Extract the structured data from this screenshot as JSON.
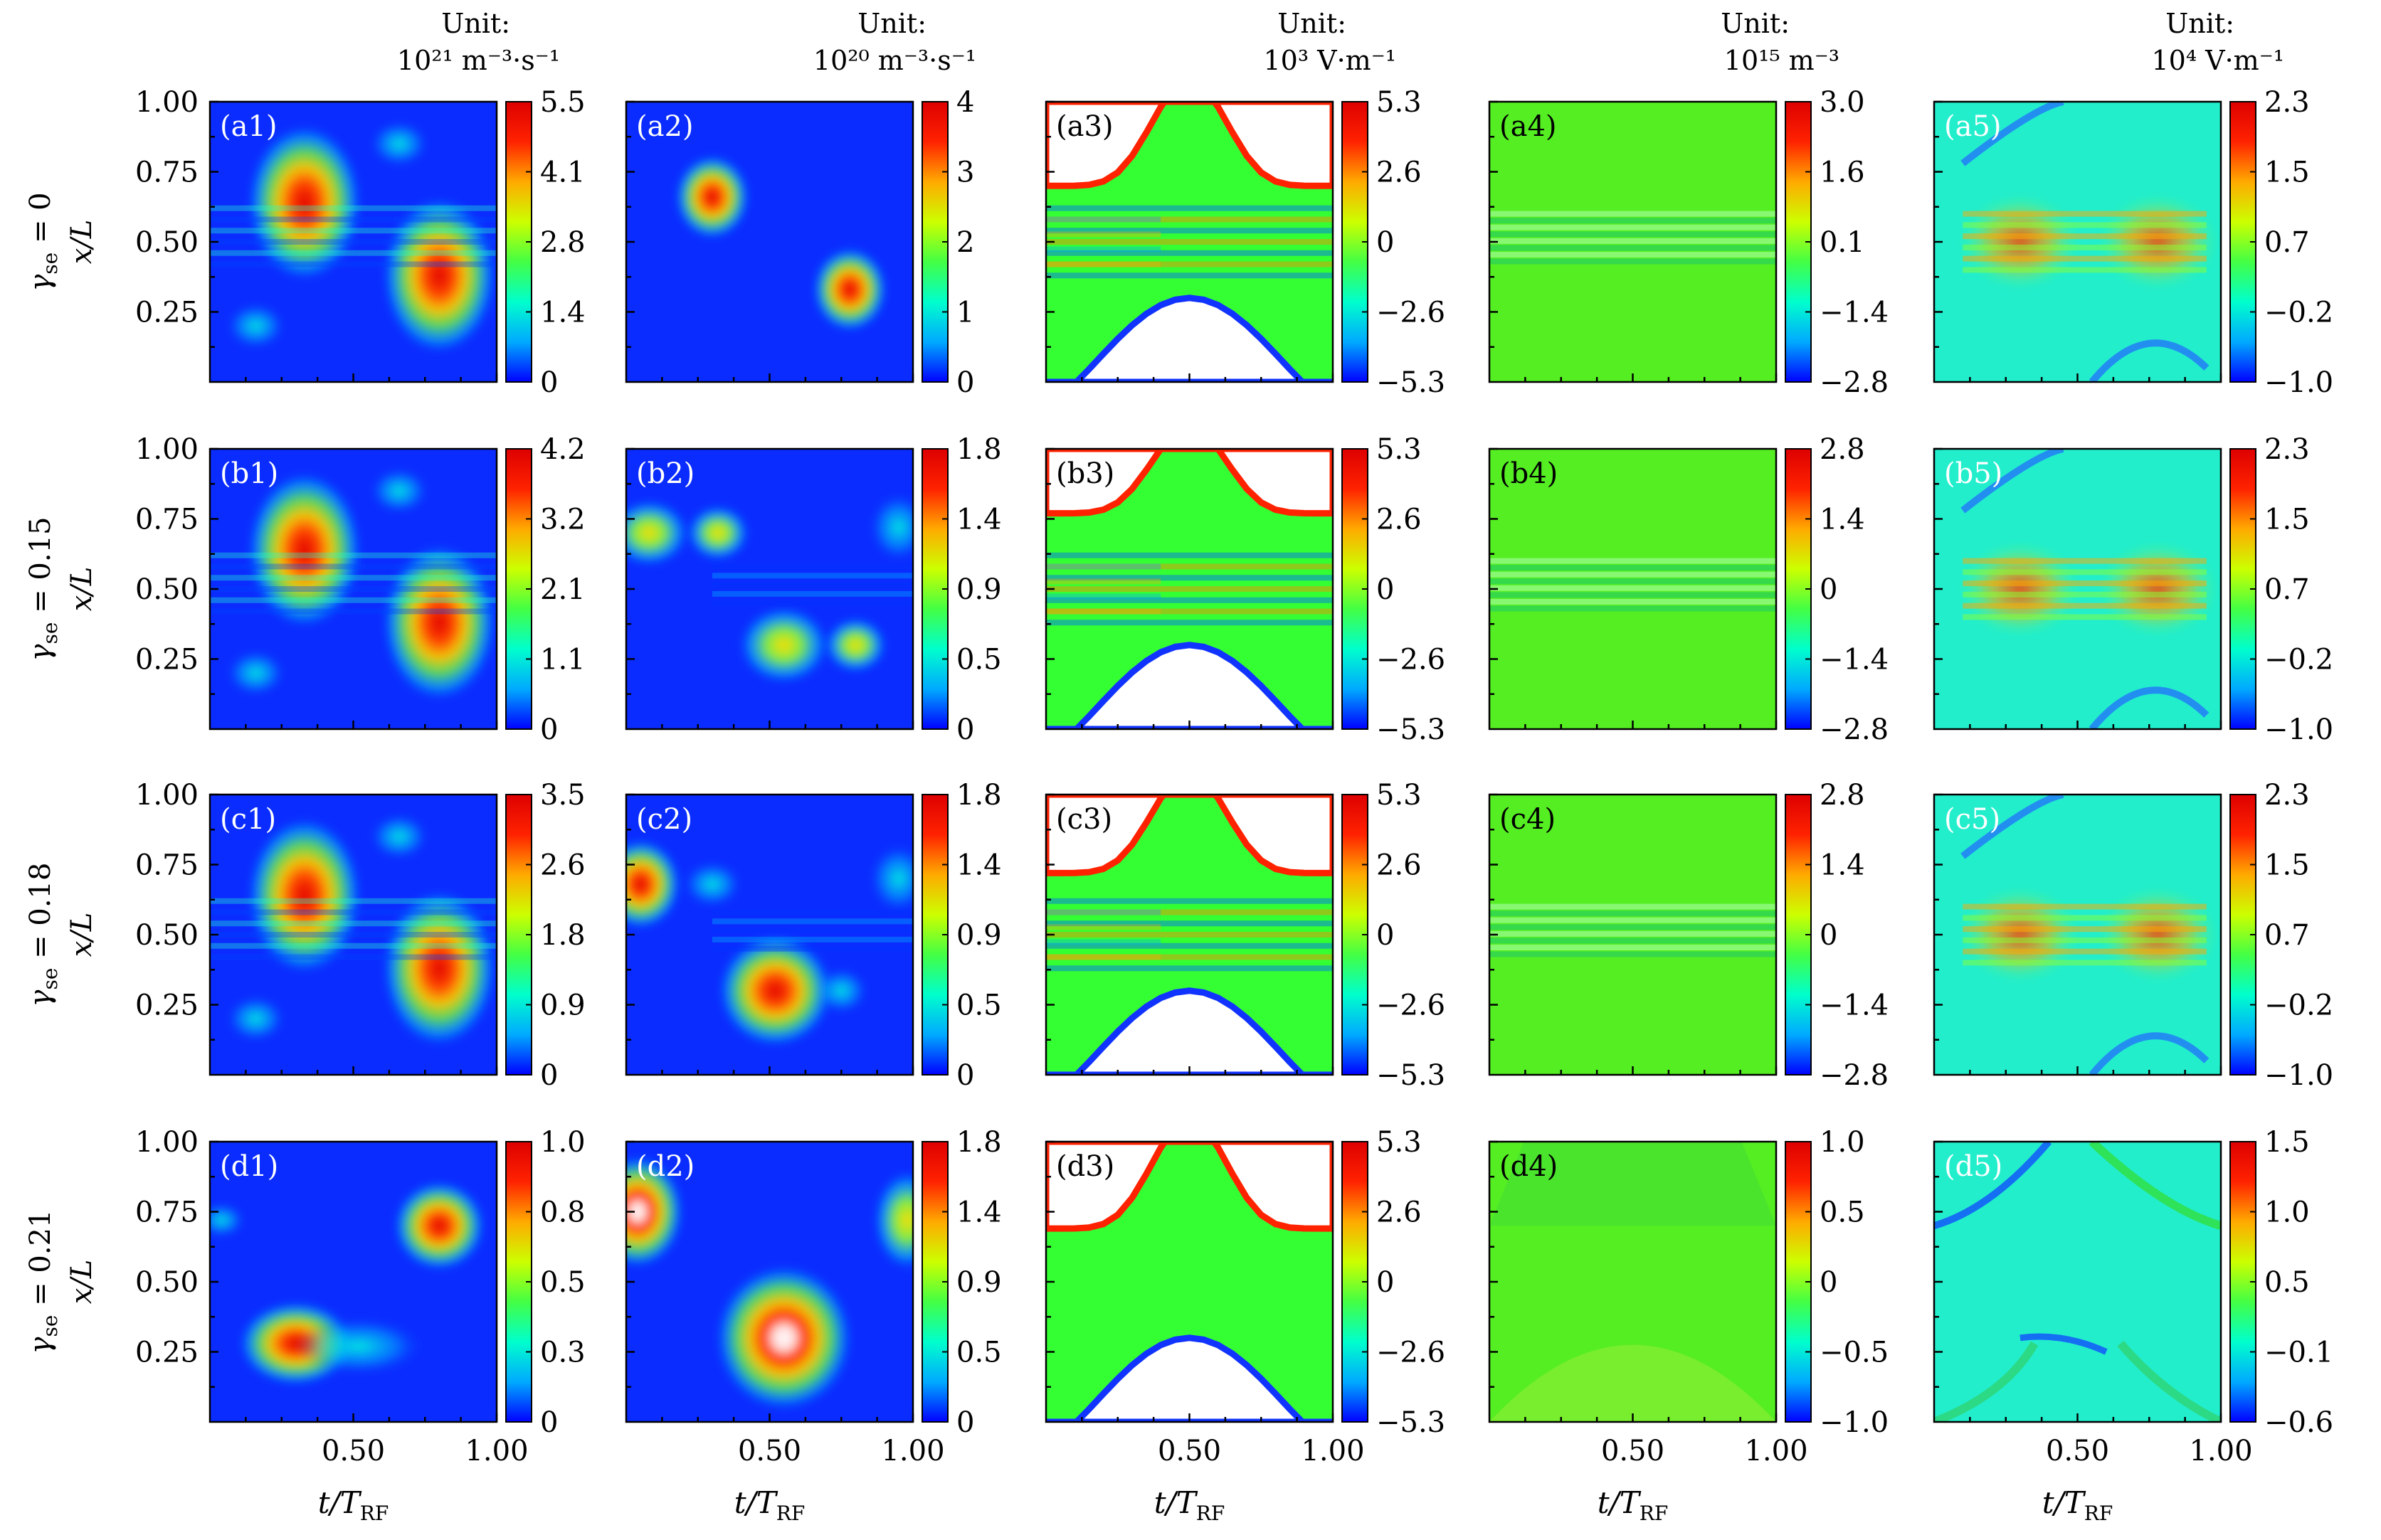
{
  "figure": {
    "x_axis_label": "t/T",
    "x_axis_label_sub": "RF",
    "y_axis_label": "x/L",
    "x_ticks": [
      "0.50",
      "1.00"
    ],
    "y_ticks": [
      "1.00",
      "0.75",
      "0.50",
      "0.25"
    ],
    "row_label_symbol": "γ",
    "row_label_sub": "se",
    "row_gammas": [
      "0",
      "0.15",
      "0.18",
      "0.21"
    ],
    "colormap": [
      "#0000ff",
      "#00aaff",
      "#00ffcc",
      "#44ff44",
      "#ccff00",
      "#ffaa00",
      "#ff2200",
      "#dd0000"
    ]
  },
  "columns": [
    {
      "unit_title": "Unit:",
      "unit_text": "10²¹ m⁻³·s⁻¹"
    },
    {
      "unit_title": "Unit:",
      "unit_text": "10²⁰ m⁻³·s⁻¹"
    },
    {
      "unit_title": "Unit:",
      "unit_text": "10³ V·m⁻¹"
    },
    {
      "unit_title": "Unit:",
      "unit_text": "10¹⁵ m⁻³"
    },
    {
      "unit_title": "Unit:",
      "unit_text": "10⁴ V·m⁻¹"
    }
  ],
  "chart_data": {
    "type": "heatmap",
    "x_range": [
      0,
      1
    ],
    "y_range": [
      0,
      1
    ],
    "panels": [
      [
        {
          "label": "(a1)",
          "colorbar_ticks": [
            "5.5",
            "4.1",
            "2.8",
            "1.4",
            "0"
          ]
        },
        {
          "label": "(a2)",
          "colorbar_ticks": [
            "4",
            "3",
            "2",
            "1",
            "0"
          ]
        },
        {
          "label": "(a3)",
          "colorbar_ticks": [
            "5.3",
            "2.6",
            "0",
            "−2.6",
            "−5.3"
          ]
        },
        {
          "label": "(a4)",
          "colorbar_ticks": [
            "3.0",
            "1.6",
            "0.1",
            "−1.4",
            "−2.8"
          ]
        },
        {
          "label": "(a5)",
          "colorbar_ticks": [
            "2.3",
            "1.5",
            "0.7",
            "−0.2",
            "−1.0"
          ]
        }
      ],
      [
        {
          "label": "(b1)",
          "colorbar_ticks": [
            "4.2",
            "3.2",
            "2.1",
            "1.1",
            "0"
          ]
        },
        {
          "label": "(b2)",
          "colorbar_ticks": [
            "1.8",
            "1.4",
            "0.9",
            "0.5",
            "0"
          ]
        },
        {
          "label": "(b3)",
          "colorbar_ticks": [
            "5.3",
            "2.6",
            "0",
            "−2.6",
            "−5.3"
          ]
        },
        {
          "label": "(b4)",
          "colorbar_ticks": [
            "2.8",
            "1.4",
            "0",
            "−1.4",
            "−2.8"
          ]
        },
        {
          "label": "(b5)",
          "colorbar_ticks": [
            "2.3",
            "1.5",
            "0.7",
            "−0.2",
            "−1.0"
          ]
        }
      ],
      [
        {
          "label": "(c1)",
          "colorbar_ticks": [
            "3.5",
            "2.6",
            "1.8",
            "0.9",
            "0"
          ]
        },
        {
          "label": "(c2)",
          "colorbar_ticks": [
            "1.8",
            "1.4",
            "0.9",
            "0.5",
            "0"
          ]
        },
        {
          "label": "(c3)",
          "colorbar_ticks": [
            "5.3",
            "2.6",
            "0",
            "−2.6",
            "−5.3"
          ]
        },
        {
          "label": "(c4)",
          "colorbar_ticks": [
            "2.8",
            "1.4",
            "0",
            "−1.4",
            "−2.8"
          ]
        },
        {
          "label": "(c5)",
          "colorbar_ticks": [
            "2.3",
            "1.5",
            "0.7",
            "−0.2",
            "−1.0"
          ]
        }
      ],
      [
        {
          "label": "(d1)",
          "colorbar_ticks": [
            "1.0",
            "0.8",
            "0.5",
            "0.3",
            "0"
          ]
        },
        {
          "label": "(d2)",
          "colorbar_ticks": [
            "1.8",
            "1.4",
            "0.9",
            "0.5",
            "0"
          ]
        },
        {
          "label": "(d3)",
          "colorbar_ticks": [
            "5.3",
            "2.6",
            "0",
            "−2.6",
            "−5.3"
          ]
        },
        {
          "label": "(d4)",
          "colorbar_ticks": [
            "1.0",
            "0.5",
            "0",
            "−0.5",
            "−1.0"
          ]
        },
        {
          "label": "(d5)",
          "colorbar_ticks": [
            "1.5",
            "1.0",
            "0.5",
            "−0.1",
            "−0.6"
          ]
        }
      ]
    ]
  }
}
